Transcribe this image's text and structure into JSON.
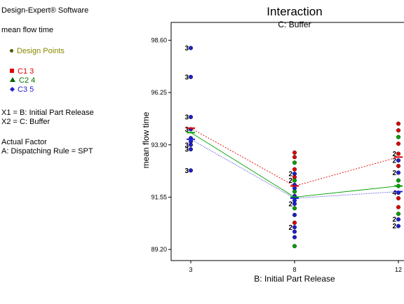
{
  "sidebar": {
    "software": "Design-Expert® Software",
    "response": "mean flow time",
    "design_points_label": "Design Points",
    "legend": [
      {
        "label": "C1 3",
        "color": "#e00000",
        "marker": "square"
      },
      {
        "label": "C2 4",
        "color": "#007700",
        "marker": "triangle"
      },
      {
        "label": "C3 5",
        "color": "#1f1fd0",
        "marker": "diamond"
      }
    ],
    "x1": "X1 = B: Initial Part Release",
    "x2": "X2 = C: Buffer",
    "actual_factor_heading": "Actual Factor",
    "actual_factor": "A: Dispatching Rule = SPT"
  },
  "colors": {
    "c1": "#e00000",
    "c2": "#00a000",
    "c3": "#1f1fd0",
    "design_points": "#888800"
  },
  "chart_data": {
    "type": "line",
    "title": "Interaction",
    "subtitle": "C: Buffer",
    "xlabel": "B: Initial Part Release",
    "ylabel": "mean flow time",
    "x_ticks": [
      "3",
      "8",
      "12"
    ],
    "y_ticks": [
      "89.20",
      "91.55",
      "93.90",
      "96.25",
      "98.60"
    ],
    "ylim": [
      88.7,
      99.4
    ],
    "x_values": [
      3,
      8,
      12
    ],
    "series": [
      {
        "name": "C1 3",
        "color": "#e00000",
        "values": [
          94.65,
          92.05,
          93.35
        ]
      },
      {
        "name": "C2 4",
        "color": "#00a000",
        "values": [
          94.45,
          91.55,
          92.05
        ]
      },
      {
        "name": "C3 5",
        "color": "#1f1fd0",
        "values": [
          94.15,
          91.5,
          91.8
        ]
      }
    ],
    "points": [
      {
        "x": 3,
        "y": 98.25,
        "c": "c3",
        "label": "3"
      },
      {
        "x": 3,
        "y": 96.95,
        "c": "c3",
        "label": "3"
      },
      {
        "x": 3,
        "y": 95.15,
        "c": "c3",
        "label": "3"
      },
      {
        "x": 3,
        "y": 94.6,
        "c": "c3",
        "label": "3"
      },
      {
        "x": 3,
        "y": 94.2,
        "c": "c3"
      },
      {
        "x": 3,
        "y": 94.05,
        "c": "c3"
      },
      {
        "x": 3,
        "y": 93.9,
        "c": "c3",
        "label": "3"
      },
      {
        "x": 3,
        "y": 93.7,
        "c": "c3",
        "label": "3"
      },
      {
        "x": 3,
        "y": 92.75,
        "c": "c3",
        "label": "3"
      },
      {
        "x": 8,
        "y": 93.55,
        "c": "c1"
      },
      {
        "x": 8,
        "y": 93.35,
        "c": "c1"
      },
      {
        "x": 8,
        "y": 93.1,
        "c": "c2"
      },
      {
        "x": 8,
        "y": 92.8,
        "c": "c1"
      },
      {
        "x": 8,
        "y": 92.6,
        "c": "c3",
        "label": "2"
      },
      {
        "x": 8,
        "y": 92.45,
        "c": "c1"
      },
      {
        "x": 8,
        "y": 92.3,
        "c": "c2",
        "label": "2"
      },
      {
        "x": 8,
        "y": 92.1,
        "c": "c3"
      },
      {
        "x": 8,
        "y": 91.95,
        "c": "c3"
      },
      {
        "x": 8,
        "y": 91.8,
        "c": "c2"
      },
      {
        "x": 8,
        "y": 91.6,
        "c": "c3"
      },
      {
        "x": 8,
        "y": 91.4,
        "c": "c3"
      },
      {
        "x": 8,
        "y": 91.25,
        "c": "c3",
        "label": "2"
      },
      {
        "x": 8,
        "y": 91.05,
        "c": "c2"
      },
      {
        "x": 8,
        "y": 90.75,
        "c": "c3"
      },
      {
        "x": 8,
        "y": 90.4,
        "c": "c1"
      },
      {
        "x": 8,
        "y": 90.2,
        "c": "c3",
        "label": "2"
      },
      {
        "x": 8,
        "y": 90.0,
        "c": "c3"
      },
      {
        "x": 8,
        "y": 89.75,
        "c": "c3"
      },
      {
        "x": 8,
        "y": 89.35,
        "c": "c2"
      },
      {
        "x": 12,
        "y": 94.85,
        "c": "c1"
      },
      {
        "x": 12,
        "y": 94.55,
        "c": "c1"
      },
      {
        "x": 12,
        "y": 94.25,
        "c": "c2"
      },
      {
        "x": 12,
        "y": 93.95,
        "c": "c1"
      },
      {
        "x": 12,
        "y": 93.5,
        "c": "c1",
        "label": "2"
      },
      {
        "x": 12,
        "y": 93.2,
        "c": "c3",
        "label": "2"
      },
      {
        "x": 12,
        "y": 92.95,
        "c": "c1"
      },
      {
        "x": 12,
        "y": 92.65,
        "c": "c3",
        "label": "2"
      },
      {
        "x": 12,
        "y": 92.3,
        "c": "c2"
      },
      {
        "x": 12,
        "y": 92.05,
        "c": "c2"
      },
      {
        "x": 12,
        "y": 91.75,
        "c": "c3",
        "label": "4"
      },
      {
        "x": 12,
        "y": 91.5,
        "c": "c1"
      },
      {
        "x": 12,
        "y": 91.1,
        "c": "c1"
      },
      {
        "x": 12,
        "y": 90.8,
        "c": "c2"
      },
      {
        "x": 12,
        "y": 90.55,
        "c": "c3",
        "label": "2"
      },
      {
        "x": 12,
        "y": 90.25,
        "c": "c3",
        "label": "2"
      }
    ]
  }
}
